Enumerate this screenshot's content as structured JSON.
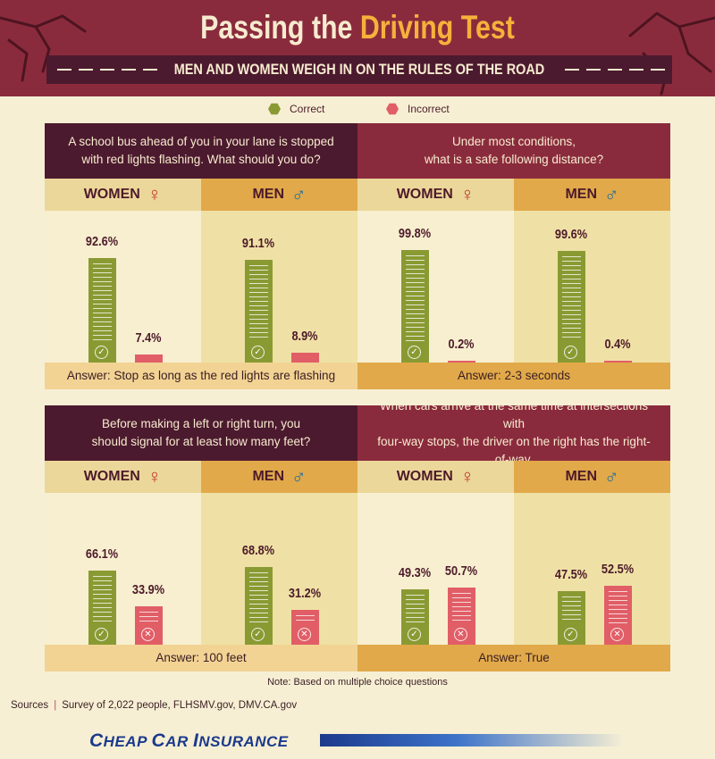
{
  "title": {
    "prefix": "Passing the ",
    "highlight": "Driving Test"
  },
  "subtitle": "MEN AND WOMEN WEIGH IN ON THE RULES OF THE ROAD",
  "legend": [
    {
      "label": "Correct",
      "color": "#8a9a33"
    },
    {
      "label": "Incorrect",
      "color": "#e15e67"
    }
  ],
  "colors": {
    "correct": "#8a9a33",
    "incorrect": "#e15e67",
    "maroon": "#8a2b3d",
    "dark_maroon": "#4c1a2e",
    "header_light": "#ecd79a",
    "header_gold": "#e1a94a",
    "col_light": "#f7efd0",
    "col_mid": "#efe1a5"
  },
  "genders": {
    "women": {
      "label": "WOMEN",
      "symbol": "♀",
      "symbol_color": "#c0392b"
    },
    "men": {
      "label": "MEN",
      "symbol": "♂",
      "symbol_color": "#1f6fa0"
    }
  },
  "icons": {
    "correct_badge": "check-icon",
    "incorrect_badge": "x-icon"
  },
  "chart_data": [
    {
      "type": "bar",
      "question": "A school bus ahead of you in your lane is stopped\nwith red lights flashing. What should you do?",
      "answer": "Answer: Stop as long as the red lights are flashing",
      "categories": [
        "WOMEN",
        "MEN"
      ],
      "series": [
        {
          "name": "Correct",
          "values": [
            92.6,
            91.1
          ]
        },
        {
          "name": "Incorrect",
          "values": [
            7.4,
            8.9
          ]
        }
      ],
      "labels": {
        "correct": [
          "92.6%",
          "91.1%"
        ],
        "incorrect": [
          "7.4%",
          "8.9%"
        ]
      }
    },
    {
      "type": "bar",
      "question": "Under most conditions,\nwhat is a safe following distance?",
      "answer": "Answer: 2-3 seconds",
      "categories": [
        "WOMEN",
        "MEN"
      ],
      "series": [
        {
          "name": "Correct",
          "values": [
            99.8,
            99.6
          ]
        },
        {
          "name": "Incorrect",
          "values": [
            0.2,
            0.4
          ]
        }
      ],
      "labels": {
        "correct": [
          "99.8%",
          "99.6%"
        ],
        "incorrect": [
          "0.2%",
          "0.4%"
        ]
      }
    },
    {
      "type": "bar",
      "question": "Before making a left or right turn, you\nshould signal for at least how many feet?",
      "answer": "Answer: 100 feet",
      "categories": [
        "WOMEN",
        "MEN"
      ],
      "series": [
        {
          "name": "Correct",
          "values": [
            66.1,
            68.8
          ]
        },
        {
          "name": "Incorrect",
          "values": [
            33.9,
            31.2
          ]
        }
      ],
      "labels": {
        "correct": [
          "66.1%",
          "68.8%"
        ],
        "incorrect": [
          "33.9%",
          "31.2%"
        ]
      }
    },
    {
      "type": "bar",
      "question": "When cars arrive at the same time at intersections with\nfour-way stops, the driver on the right has the right-of-way.",
      "answer": "Answer: True",
      "categories": [
        "WOMEN",
        "MEN"
      ],
      "series": [
        {
          "name": "Correct",
          "values": [
            49.3,
            47.5
          ]
        },
        {
          "name": "Incorrect",
          "values": [
            50.7,
            52.5
          ]
        }
      ],
      "labels": {
        "correct": [
          "49.3%",
          "47.5%"
        ],
        "incorrect": [
          "50.7%",
          "52.5%"
        ]
      }
    }
  ],
  "note": "Note: Based on multiple choice questions",
  "sources": {
    "label": "Sources",
    "text": "Survey of 2,022 people, FLHSMV.gov, DMV.CA.gov"
  },
  "brand": {
    "part1": "C",
    "part2": "HEAP ",
    "part3": "C",
    "part4": "AR ",
    "part5": "I",
    "part6": "NSURANCE"
  }
}
